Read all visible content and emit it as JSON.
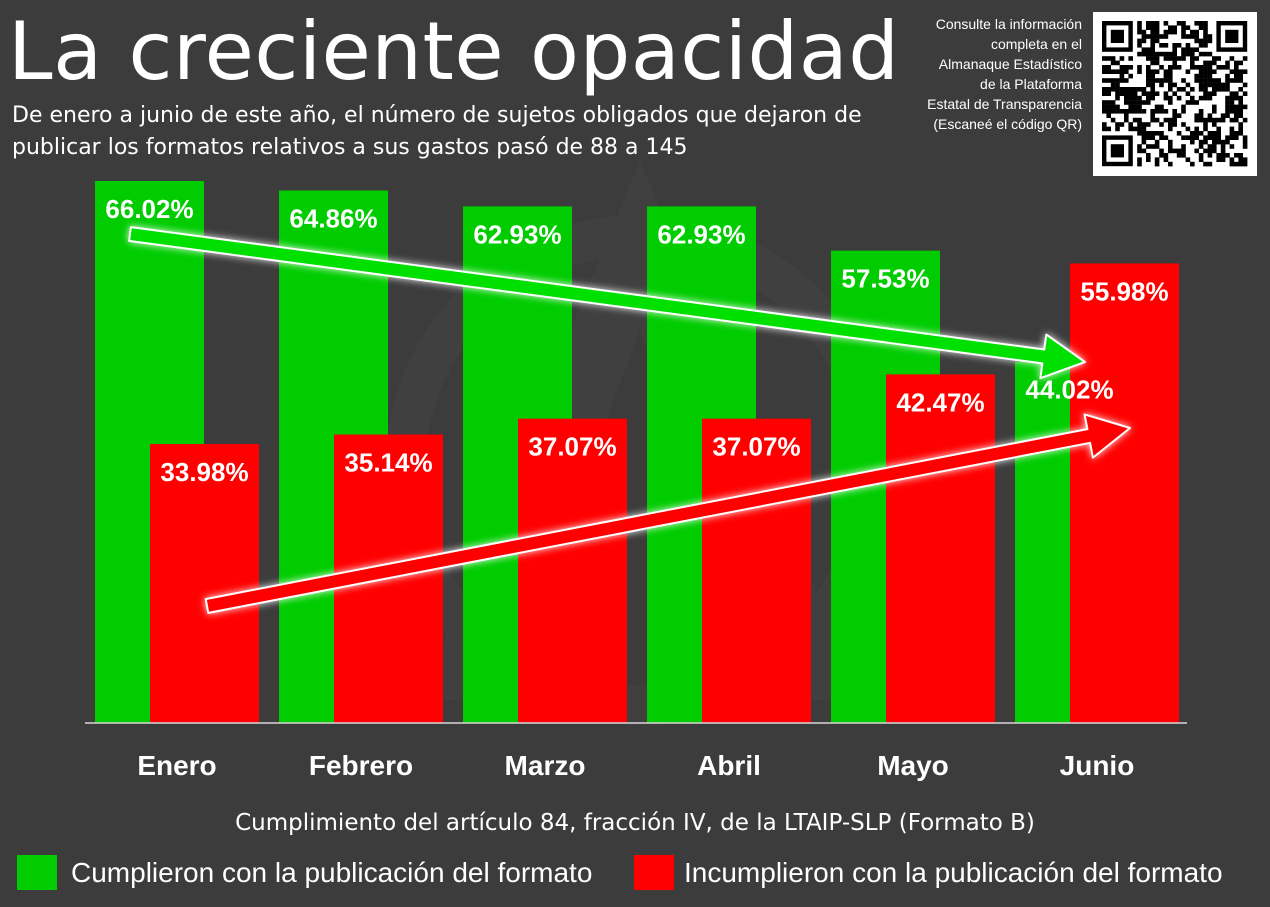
{
  "header": {
    "title": "La creciente opacidad",
    "subtitle": "De enero a junio de este año, el número de sujetos obligados que dejaron de publicar los formatos relativos a sus gastos pasó de 88 a 145"
  },
  "qr_note": {
    "text": "Consulte la información\ncompleta en el\nAlmanaque Estadístico\nde la Plataforma\nEstatal de Transparencia\n(Escaneé el código QR)",
    "qr_icon": "qr-code-icon"
  },
  "colors": {
    "background": "#3c3c3c",
    "cumplieron": "#00cc00",
    "incumplieron": "#ff0000",
    "text": "#ffffff"
  },
  "chart_data": {
    "type": "bar",
    "title": "",
    "xlabel": "Cumplimiento del artículo 84, fracción IV, de la LTAIP-SLP (Formato B)",
    "ylabel": "",
    "ylim": [
      0,
      66.02
    ],
    "grid": false,
    "legend_position": "bottom",
    "categories": [
      "Enero",
      "Febrero",
      "Marzo",
      "Abril",
      "Mayo",
      "Junio"
    ],
    "series": [
      {
        "name": "Cumplieron con la publicación del formato",
        "color": "#00cc00",
        "values": [
          66.02,
          64.86,
          62.93,
          62.93,
          57.53,
          44.02
        ],
        "labels": [
          "66.02%",
          "64.86%",
          "62.93%",
          "62.93%",
          "57.53%",
          "44.02%"
        ]
      },
      {
        "name": "Incumplieron con la publicación del formato",
        "color": "#ff0000",
        "values": [
          33.98,
          35.14,
          37.07,
          37.07,
          42.47,
          55.98
        ],
        "labels": [
          "33.98%",
          "35.14%",
          "37.07%",
          "37.07%",
          "42.47%",
          "55.98%"
        ]
      }
    ],
    "annotations": [
      "downward-trend-arrow",
      "upward-trend-arrow"
    ]
  },
  "footer": {
    "caption": "Cumplimiento del artículo 84, fracción IV, de la LTAIP-SLP (Formato B)"
  }
}
